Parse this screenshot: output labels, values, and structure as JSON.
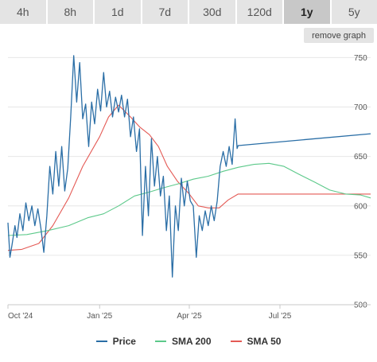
{
  "tabs": [
    {
      "label": "4h"
    },
    {
      "label": "8h"
    },
    {
      "label": "1d"
    },
    {
      "label": "7d"
    },
    {
      "label": "30d"
    },
    {
      "label": "120d"
    },
    {
      "label": "1y",
      "active": true
    },
    {
      "label": "5y"
    }
  ],
  "remove_graph_label": "remove graph",
  "legend": [
    {
      "label": "Price",
      "color": "#2a6ea6"
    },
    {
      "label": "SMA 200",
      "color": "#5cc98a"
    },
    {
      "label": "SMA 50",
      "color": "#e45a55"
    }
  ],
  "chart_data": {
    "type": "line",
    "x_type": "date",
    "xlim": [
      "2024-10-01",
      "2025-09-30"
    ],
    "ylim": [
      500,
      760
    ],
    "y_axis_position": "right",
    "grid": "horizontal",
    "x_ticks": [
      {
        "date": "2024-10-01",
        "label": "Oct '24"
      },
      {
        "date": "2025-01-01",
        "label": "Jan '25"
      },
      {
        "date": "2025-04-01",
        "label": "Apr '25"
      },
      {
        "date": "2025-07-01",
        "label": "Jul '25"
      }
    ],
    "y_ticks": [
      500,
      550,
      600,
      650,
      700,
      750
    ],
    "series": [
      {
        "name": "Price",
        "color": "#2a6ea6",
        "points": [
          [
            "2024-10-01",
            583
          ],
          [
            "2024-10-03",
            548
          ],
          [
            "2024-10-05",
            560
          ],
          [
            "2024-10-08",
            580
          ],
          [
            "2024-10-10",
            568
          ],
          [
            "2024-10-13",
            592
          ],
          [
            "2024-10-16",
            575
          ],
          [
            "2024-10-19",
            603
          ],
          [
            "2024-10-22",
            585
          ],
          [
            "2024-10-25",
            600
          ],
          [
            "2024-10-28",
            580
          ],
          [
            "2024-10-31",
            597
          ],
          [
            "2024-11-03",
            578
          ],
          [
            "2024-11-06",
            553
          ],
          [
            "2024-11-09",
            590
          ],
          [
            "2024-11-12",
            640
          ],
          [
            "2024-11-15",
            612
          ],
          [
            "2024-11-18",
            655
          ],
          [
            "2024-11-21",
            620
          ],
          [
            "2024-11-24",
            660
          ],
          [
            "2024-11-27",
            615
          ],
          [
            "2024-11-30",
            638
          ],
          [
            "2024-12-03",
            690
          ],
          [
            "2024-12-06",
            752
          ],
          [
            "2024-12-09",
            705
          ],
          [
            "2024-12-12",
            745
          ],
          [
            "2024-12-15",
            688
          ],
          [
            "2024-12-18",
            703
          ],
          [
            "2024-12-21",
            660
          ],
          [
            "2024-12-24",
            705
          ],
          [
            "2024-12-27",
            683
          ],
          [
            "2024-12-30",
            718
          ],
          [
            "2025-01-02",
            696
          ],
          [
            "2025-01-05",
            735
          ],
          [
            "2025-01-08",
            700
          ],
          [
            "2025-01-11",
            716
          ],
          [
            "2025-01-14",
            690
          ],
          [
            "2025-01-17",
            710
          ],
          [
            "2025-01-20",
            695
          ],
          [
            "2025-01-23",
            712
          ],
          [
            "2025-01-26",
            690
          ],
          [
            "2025-01-29",
            708
          ],
          [
            "2025-02-01",
            670
          ],
          [
            "2025-02-04",
            690
          ],
          [
            "2025-02-07",
            655
          ],
          [
            "2025-02-10",
            678
          ],
          [
            "2025-02-13",
            570
          ],
          [
            "2025-02-16",
            640
          ],
          [
            "2025-02-19",
            590
          ],
          [
            "2025-02-22",
            668
          ],
          [
            "2025-02-25",
            620
          ],
          [
            "2025-02-28",
            650
          ],
          [
            "2025-03-03",
            610
          ],
          [
            "2025-03-06",
            630
          ],
          [
            "2025-03-09",
            575
          ],
          [
            "2025-03-12",
            610
          ],
          [
            "2025-03-15",
            528
          ],
          [
            "2025-03-18",
            600
          ],
          [
            "2025-03-21",
            575
          ],
          [
            "2025-03-24",
            628
          ],
          [
            "2025-03-27",
            600
          ],
          [
            "2025-03-30",
            625
          ],
          [
            "2025-04-02",
            605
          ],
          [
            "2025-04-05",
            600
          ],
          [
            "2025-04-08",
            548
          ],
          [
            "2025-04-11",
            590
          ],
          [
            "2025-04-14",
            575
          ],
          [
            "2025-04-17",
            595
          ],
          [
            "2025-04-20",
            580
          ],
          [
            "2025-04-23",
            600
          ],
          [
            "2025-04-26",
            585
          ],
          [
            "2025-04-29",
            605
          ],
          [
            "2025-05-02",
            640
          ],
          [
            "2025-05-05",
            655
          ],
          [
            "2025-05-08",
            640
          ],
          [
            "2025-05-11",
            660
          ],
          [
            "2025-05-14",
            642
          ],
          [
            "2025-05-17",
            688
          ],
          [
            "2025-05-19",
            658
          ],
          [
            "2025-05-20",
            661
          ],
          [
            "2025-09-30",
            673
          ]
        ]
      },
      {
        "name": "SMA 200",
        "color": "#5cc98a",
        "points": [
          [
            "2024-10-01",
            570
          ],
          [
            "2024-10-20",
            571
          ],
          [
            "2024-11-10",
            575
          ],
          [
            "2024-12-01",
            580
          ],
          [
            "2024-12-20",
            588
          ],
          [
            "2025-01-05",
            592
          ],
          [
            "2025-01-20",
            600
          ],
          [
            "2025-02-05",
            610
          ],
          [
            "2025-02-20",
            614
          ],
          [
            "2025-03-05",
            618
          ],
          [
            "2025-03-20",
            622
          ],
          [
            "2025-04-05",
            627
          ],
          [
            "2025-04-20",
            630
          ],
          [
            "2025-05-05",
            635
          ],
          [
            "2025-05-20",
            639
          ],
          [
            "2025-06-05",
            642
          ],
          [
            "2025-06-20",
            643
          ],
          [
            "2025-07-05",
            640
          ],
          [
            "2025-07-20",
            632
          ],
          [
            "2025-08-05",
            624
          ],
          [
            "2025-08-20",
            616
          ],
          [
            "2025-09-05",
            612
          ],
          [
            "2025-09-20",
            611
          ],
          [
            "2025-09-30",
            608
          ]
        ]
      },
      {
        "name": "SMA 50",
        "color": "#e45a55",
        "points": [
          [
            "2024-10-01",
            555
          ],
          [
            "2024-10-15",
            556
          ],
          [
            "2024-11-01",
            562
          ],
          [
            "2024-11-15",
            580
          ],
          [
            "2024-12-01",
            608
          ],
          [
            "2024-12-15",
            640
          ],
          [
            "2025-01-01",
            670
          ],
          [
            "2025-01-10",
            690
          ],
          [
            "2025-01-20",
            702
          ],
          [
            "2025-02-01",
            690
          ],
          [
            "2025-02-10",
            680
          ],
          [
            "2025-02-20",
            672
          ],
          [
            "2025-03-01",
            660
          ],
          [
            "2025-03-10",
            640
          ],
          [
            "2025-03-20",
            625
          ],
          [
            "2025-04-01",
            612
          ],
          [
            "2025-04-10",
            600
          ],
          [
            "2025-04-20",
            598
          ],
          [
            "2025-05-01",
            598
          ],
          [
            "2025-05-10",
            606
          ],
          [
            "2025-05-20",
            612
          ],
          [
            "2025-09-30",
            612
          ]
        ]
      }
    ]
  }
}
